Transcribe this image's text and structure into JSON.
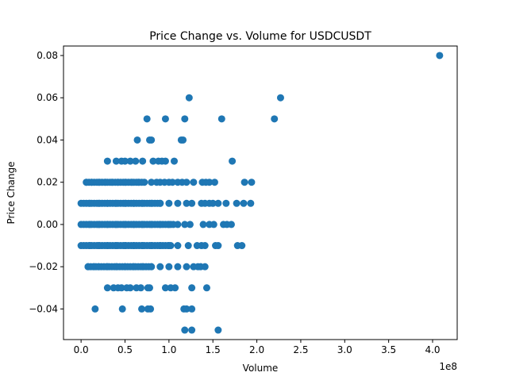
{
  "chart_data": {
    "type": "scatter",
    "title": "Price Change vs. Volume for USDCUSDT",
    "xlabel": "Volume",
    "ylabel": "Price Change",
    "x_scale_label": "1e8",
    "x_ticks": [
      "0.0",
      "0.5",
      "1.0",
      "1.5",
      "2.0",
      "2.5",
      "3.0",
      "3.5",
      "4.0"
    ],
    "y_ticks": [
      "−0.04",
      "−0.02",
      "0.00",
      "0.02",
      "0.04",
      "0.06",
      "0.08"
    ],
    "xlim": [
      -0.2,
      4.28
    ],
    "ylim": [
      -0.0545,
      0.0845
    ],
    "grid": false,
    "marker_color": "#1f77b4",
    "series": [
      {
        "points": [
          [
            4.08,
            0.08
          ],
          [
            1.23,
            0.06
          ],
          [
            2.27,
            0.06
          ],
          [
            0.75,
            0.05
          ],
          [
            0.96,
            0.05
          ],
          [
            1.18,
            0.05
          ],
          [
            1.6,
            0.05
          ],
          [
            2.2,
            0.05
          ],
          [
            0.64,
            0.04
          ],
          [
            0.78,
            0.04
          ],
          [
            0.8,
            0.04
          ],
          [
            1.14,
            0.04
          ],
          [
            1.16,
            0.04
          ],
          [
            0.3,
            0.03
          ],
          [
            0.4,
            0.03
          ],
          [
            0.46,
            0.03
          ],
          [
            0.5,
            0.03
          ],
          [
            0.56,
            0.03
          ],
          [
            0.62,
            0.03
          ],
          [
            0.7,
            0.03
          ],
          [
            0.82,
            0.03
          ],
          [
            0.88,
            0.03
          ],
          [
            0.92,
            0.03
          ],
          [
            0.96,
            0.03
          ],
          [
            1.06,
            0.03
          ],
          [
            1.72,
            0.03
          ],
          [
            0.06,
            0.02
          ],
          [
            0.12,
            0.02
          ],
          [
            0.2,
            0.02
          ],
          [
            0.28,
            0.02
          ],
          [
            0.35,
            0.02
          ],
          [
            0.42,
            0.02
          ],
          [
            0.5,
            0.02
          ],
          [
            0.58,
            0.02
          ],
          [
            0.65,
            0.02
          ],
          [
            0.72,
            0.02
          ],
          [
            0.8,
            0.02
          ],
          [
            0.86,
            0.02
          ],
          [
            0.9,
            0.02
          ],
          [
            0.95,
            0.02
          ],
          [
            1.0,
            0.02
          ],
          [
            1.04,
            0.02
          ],
          [
            1.1,
            0.02
          ],
          [
            1.15,
            0.02
          ],
          [
            1.2,
            0.02
          ],
          [
            1.28,
            0.02
          ],
          [
            1.38,
            0.02
          ],
          [
            1.42,
            0.02
          ],
          [
            1.46,
            0.02
          ],
          [
            1.52,
            0.02
          ],
          [
            1.86,
            0.02
          ],
          [
            1.94,
            0.02
          ],
          [
            0.1,
            0.01
          ],
          [
            0.2,
            0.01
          ],
          [
            0.3,
            0.01
          ],
          [
            0.4,
            0.01
          ],
          [
            0.5,
            0.01
          ],
          [
            0.6,
            0.01
          ],
          [
            0.7,
            0.01
          ],
          [
            0.8,
            0.01
          ],
          [
            0.9,
            0.01
          ],
          [
            1.0,
            0.01
          ],
          [
            1.1,
            0.01
          ],
          [
            1.2,
            0.01
          ],
          [
            1.26,
            0.01
          ],
          [
            1.37,
            0.01
          ],
          [
            1.41,
            0.01
          ],
          [
            1.46,
            0.01
          ],
          [
            1.5,
            0.01
          ],
          [
            1.56,
            0.01
          ],
          [
            1.65,
            0.01
          ],
          [
            1.77,
            0.01
          ],
          [
            1.85,
            0.01
          ],
          [
            1.93,
            0.01
          ],
          [
            0.1,
            0.0
          ],
          [
            0.2,
            0.0
          ],
          [
            0.3,
            0.0
          ],
          [
            0.4,
            0.0
          ],
          [
            0.5,
            0.0
          ],
          [
            0.6,
            0.0
          ],
          [
            0.7,
            0.0
          ],
          [
            0.8,
            0.0
          ],
          [
            0.9,
            0.0
          ],
          [
            1.0,
            0.0
          ],
          [
            1.1,
            0.0
          ],
          [
            1.18,
            0.0
          ],
          [
            1.24,
            0.0
          ],
          [
            1.39,
            0.0
          ],
          [
            1.46,
            0.0
          ],
          [
            1.51,
            0.0
          ],
          [
            1.62,
            0.0
          ],
          [
            1.66,
            0.0
          ],
          [
            1.71,
            0.0
          ],
          [
            0.1,
            -0.01
          ],
          [
            0.2,
            -0.01
          ],
          [
            0.3,
            -0.01
          ],
          [
            0.4,
            -0.01
          ],
          [
            0.5,
            -0.01
          ],
          [
            0.6,
            -0.01
          ],
          [
            0.7,
            -0.01
          ],
          [
            0.8,
            -0.01
          ],
          [
            0.9,
            -0.01
          ],
          [
            1.0,
            -0.01
          ],
          [
            1.1,
            -0.01
          ],
          [
            1.22,
            -0.01
          ],
          [
            1.32,
            -0.01
          ],
          [
            1.37,
            -0.01
          ],
          [
            1.41,
            -0.01
          ],
          [
            1.53,
            -0.01
          ],
          [
            1.56,
            -0.01
          ],
          [
            1.78,
            -0.01
          ],
          [
            1.83,
            -0.01
          ],
          [
            0.08,
            -0.02
          ],
          [
            0.15,
            -0.02
          ],
          [
            0.2,
            -0.02
          ],
          [
            0.3,
            -0.02
          ],
          [
            0.4,
            -0.02
          ],
          [
            0.5,
            -0.02
          ],
          [
            0.6,
            -0.02
          ],
          [
            0.7,
            -0.02
          ],
          [
            0.8,
            -0.02
          ],
          [
            0.9,
            -0.02
          ],
          [
            1.0,
            -0.02
          ],
          [
            1.1,
            -0.02
          ],
          [
            1.2,
            -0.02
          ],
          [
            1.28,
            -0.02
          ],
          [
            1.33,
            -0.02
          ],
          [
            1.36,
            -0.02
          ],
          [
            1.41,
            -0.02
          ],
          [
            0.3,
            -0.03
          ],
          [
            0.37,
            -0.03
          ],
          [
            0.42,
            -0.03
          ],
          [
            0.46,
            -0.03
          ],
          [
            0.52,
            -0.03
          ],
          [
            0.56,
            -0.03
          ],
          [
            0.63,
            -0.03
          ],
          [
            0.68,
            -0.03
          ],
          [
            0.76,
            -0.03
          ],
          [
            0.78,
            -0.03
          ],
          [
            0.96,
            -0.03
          ],
          [
            1.02,
            -0.03
          ],
          [
            1.07,
            -0.03
          ],
          [
            1.26,
            -0.03
          ],
          [
            1.43,
            -0.03
          ],
          [
            0.16,
            -0.04
          ],
          [
            0.47,
            -0.04
          ],
          [
            0.69,
            -0.04
          ],
          [
            0.76,
            -0.04
          ],
          [
            0.79,
            -0.04
          ],
          [
            1.17,
            -0.04
          ],
          [
            1.2,
            -0.04
          ],
          [
            1.26,
            -0.04
          ],
          [
            1.18,
            -0.05
          ],
          [
            1.26,
            -0.05
          ],
          [
            1.56,
            -0.05
          ]
        ],
        "dense_bands": [
          {
            "y": 0.01,
            "x_range": [
              0.0,
              0.9
            ]
          },
          {
            "y": 0.0,
            "x_range": [
              0.0,
              1.05
            ]
          },
          {
            "y": -0.01,
            "x_range": [
              0.0,
              1.02
            ]
          },
          {
            "y": -0.02,
            "x_range": [
              0.08,
              0.8
            ]
          },
          {
            "y": 0.02,
            "x_range": [
              0.06,
              0.7
            ]
          }
        ]
      }
    ]
  }
}
